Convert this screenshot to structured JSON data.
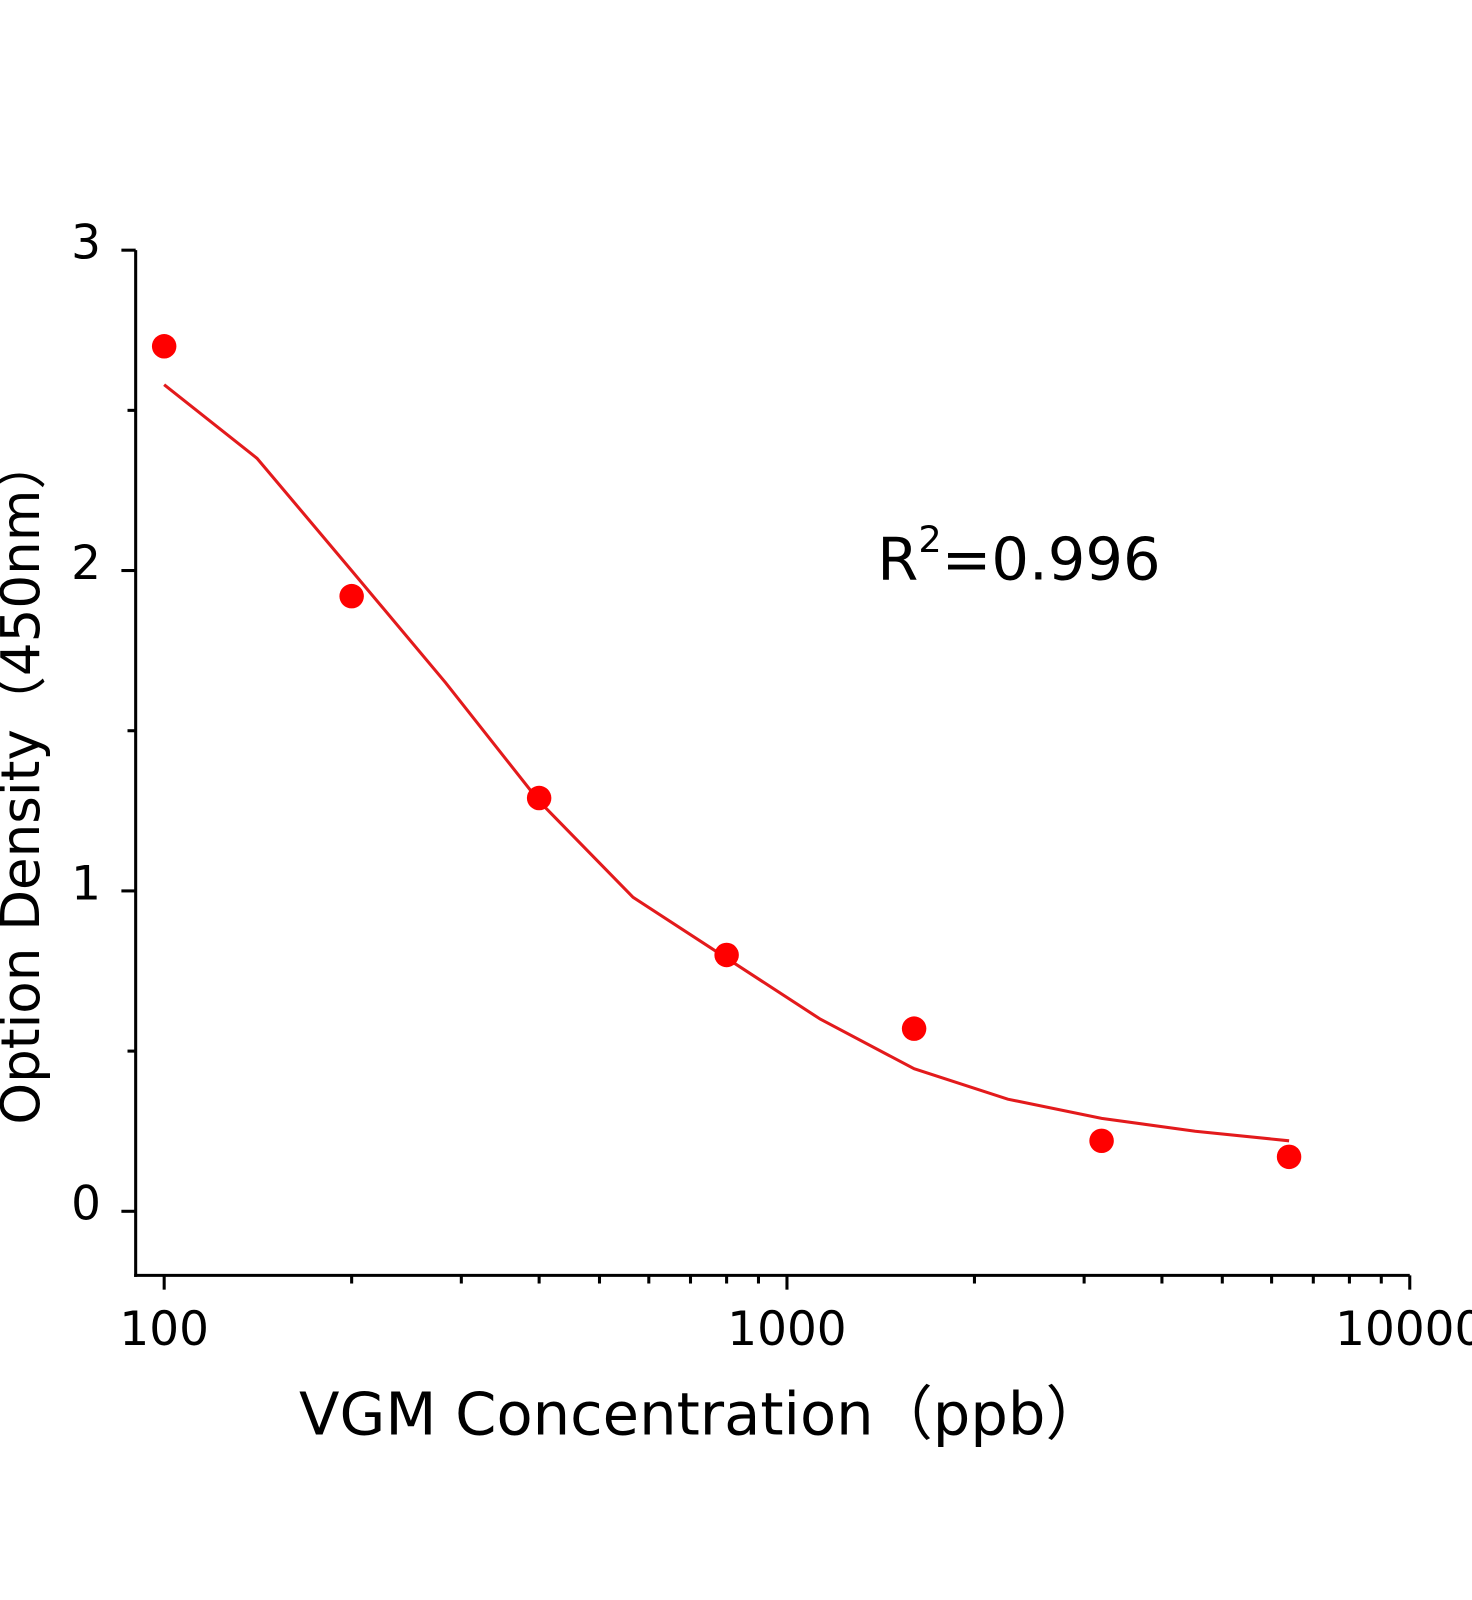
{
  "chart_data": {
    "type": "scatter",
    "x_label": "VGM Concentration（ppb）",
    "y_label": "Option Density（450nm）",
    "annotation": {
      "base": "R",
      "sup": "2",
      "rest": "=0.996"
    },
    "x_log": true,
    "xlim": [
      90,
      10000
    ],
    "ylim": [
      -0.2,
      3
    ],
    "xticks": [
      100,
      1000,
      10000
    ],
    "xminor_ticks": [
      200,
      300,
      400,
      500,
      600,
      700,
      800,
      900,
      2000,
      3000,
      4000,
      5000,
      6000,
      7000,
      8000,
      9000
    ],
    "yticks": [
      0,
      1,
      2,
      3
    ],
    "yminor_ticks": [
      0.5,
      1.5,
      2.5
    ],
    "series": [
      {
        "color": "#ff0000",
        "x": [
          100,
          200,
          400,
          800,
          1600,
          3200,
          6400
        ],
        "values": [
          2.7,
          1.92,
          1.29,
          0.8,
          0.57,
          0.22,
          0.17
        ]
      }
    ],
    "fit": {
      "color": "#e31a1c",
      "x": [
        100,
        141,
        200,
        283,
        400,
        566,
        800,
        1131,
        1600,
        2263,
        3200,
        4525,
        6400
      ],
      "values": [
        2.58,
        2.35,
        2.0,
        1.65,
        1.28,
        0.98,
        0.79,
        0.6,
        0.445,
        0.35,
        0.29,
        0.25,
        0.22
      ]
    }
  }
}
